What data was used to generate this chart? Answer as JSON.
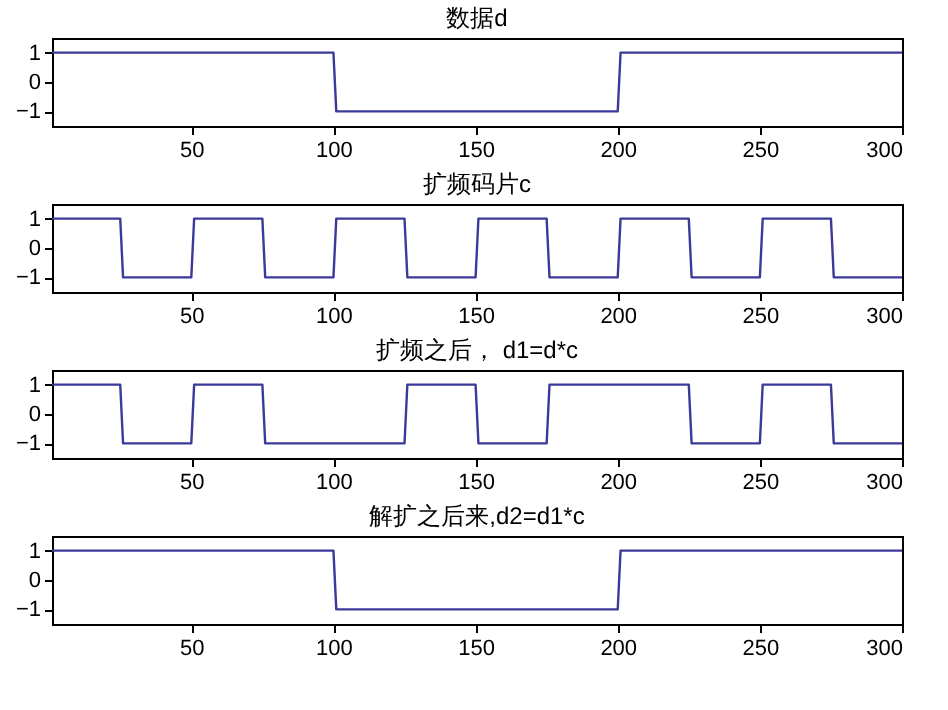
{
  "chart_data": [
    {
      "type": "line",
      "title": "数据d",
      "xlim": [
        1,
        300
      ],
      "xticks": [
        50,
        100,
        150,
        200,
        250,
        300
      ],
      "ylim": [
        -1.5,
        1.5
      ],
      "yticks": [
        -1,
        0,
        1
      ],
      "x": [
        1,
        100,
        101,
        200,
        201,
        300
      ],
      "series": [
        {
          "color": "#3a3a9a",
          "values": [
            1,
            1,
            -1,
            -1,
            1,
            1
          ]
        }
      ]
    },
    {
      "type": "line",
      "title": "扩频码片c",
      "xlim": [
        1,
        300
      ],
      "xticks": [
        50,
        100,
        150,
        200,
        250,
        300
      ],
      "ylim": [
        -1.5,
        1.5
      ],
      "yticks": [
        -1,
        0,
        1
      ],
      "x": [
        1,
        25,
        26,
        50,
        51,
        75,
        76,
        100,
        101,
        125,
        126,
        150,
        151,
        175,
        176,
        200,
        201,
        225,
        226,
        250,
        251,
        275,
        276,
        300
      ],
      "series": [
        {
          "color": "#3a3a9a",
          "values": [
            1,
            1,
            -1,
            -1,
            1,
            1,
            -1,
            -1,
            1,
            1,
            -1,
            -1,
            1,
            1,
            -1,
            -1,
            1,
            1,
            -1,
            -1,
            1,
            1,
            -1,
            -1
          ]
        }
      ]
    },
    {
      "type": "line",
      "title": "扩频之后， d1=d*c",
      "xlim": [
        1,
        300
      ],
      "xticks": [
        50,
        100,
        150,
        200,
        250,
        300
      ],
      "ylim": [
        -1.5,
        1.5
      ],
      "yticks": [
        -1,
        0,
        1
      ],
      "x": [
        1,
        25,
        26,
        50,
        51,
        75,
        76,
        100,
        101,
        125,
        126,
        150,
        151,
        175,
        176,
        200,
        201,
        225,
        226,
        250,
        251,
        275,
        276,
        300
      ],
      "series": [
        {
          "color": "#3a3a9a",
          "values": [
            1,
            1,
            -1,
            -1,
            1,
            1,
            -1,
            -1,
            -1,
            -1,
            1,
            1,
            -1,
            -1,
            1,
            1,
            1,
            1,
            -1,
            -1,
            1,
            1,
            -1,
            -1
          ]
        }
      ]
    },
    {
      "type": "line",
      "title": "解扩之后来,d2=d1*c",
      "xlim": [
        1,
        300
      ],
      "xticks": [
        50,
        100,
        150,
        200,
        250,
        300
      ],
      "ylim": [
        -1.5,
        1.5
      ],
      "yticks": [
        -1,
        0,
        1
      ],
      "x": [
        1,
        100,
        101,
        200,
        201,
        300
      ],
      "series": [
        {
          "color": "#3a3a9a",
          "values": [
            1,
            1,
            -1,
            -1,
            1,
            1
          ]
        }
      ]
    }
  ]
}
